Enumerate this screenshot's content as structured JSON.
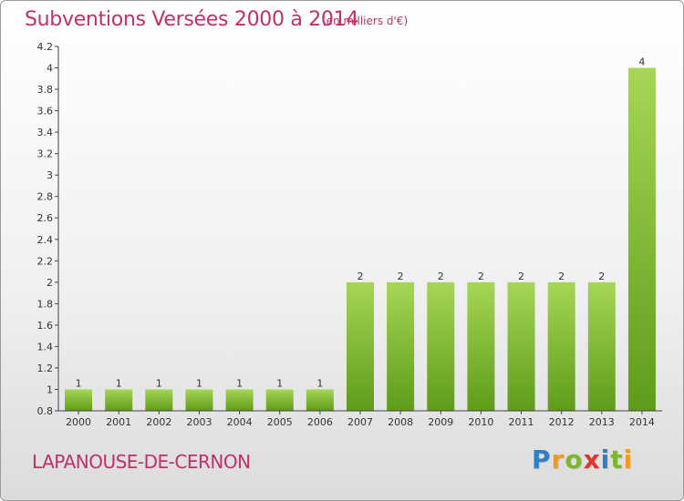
{
  "header": {
    "title": "Subventions Versées 2000 à 2014",
    "subtitle": "(en milliers d'€)"
  },
  "footer": {
    "commune": "LAPANOUSE-DE-CERNON",
    "logo": "Proxiti"
  },
  "colors": {
    "title": "#c0306a",
    "bar_light": "#9fd04e",
    "bar_dark": "#5e9c1a"
  },
  "chart_data": {
    "type": "bar",
    "title": "Subventions Versées 2000 à 2014",
    "subtitle": "(en milliers d'€)",
    "xlabel": "",
    "ylabel": "",
    "categories": [
      "2000",
      "2001",
      "2002",
      "2003",
      "2004",
      "2005",
      "2006",
      "2007",
      "2008",
      "2009",
      "2010",
      "2011",
      "2012",
      "2013",
      "2014"
    ],
    "values": [
      1,
      1,
      1,
      1,
      1,
      1,
      1,
      2,
      2,
      2,
      2,
      2,
      2,
      2,
      4
    ],
    "value_labels": [
      "1",
      "1",
      "1",
      "1",
      "1",
      "1",
      "1",
      "2",
      "2",
      "2",
      "2",
      "2",
      "2",
      "2",
      "4"
    ],
    "ylim": [
      0.8,
      4.2
    ],
    "yticks": [
      "0.8",
      "1",
      "1.2",
      "1.4",
      "1.6",
      "1.8",
      "2",
      "2.2",
      "2.4",
      "2.6",
      "2.8",
      "3",
      "3.2",
      "3.4",
      "3.6",
      "3.8",
      "4",
      "4.2"
    ],
    "grid": false,
    "legend": "none"
  }
}
